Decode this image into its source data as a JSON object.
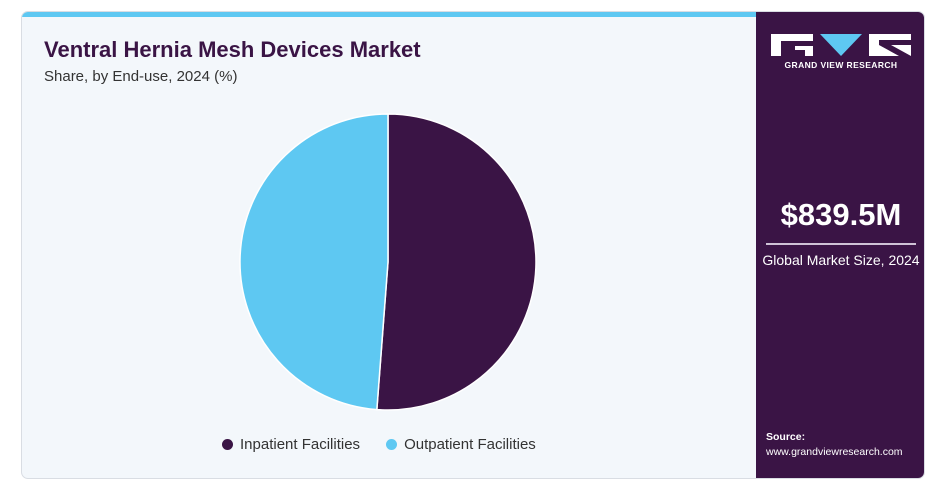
{
  "header": {
    "title": "Ventral Hernia Mesh Devices Market",
    "subtitle": "Share, by End-use, 2024 (%)"
  },
  "chart_data": {
    "type": "pie",
    "title": "Ventral Hernia Mesh Devices Market",
    "subtitle": "Share, by End-use, 2024 (%)",
    "slices": [
      {
        "name": "Inpatient Facilities",
        "value": 51.2,
        "color": "#3a1445"
      },
      {
        "name": "Outpatient Facilities",
        "value": 48.8,
        "color": "#5ec8f2"
      }
    ],
    "start_angle_deg": 0,
    "legend_position": "bottom"
  },
  "legend": {
    "items": [
      {
        "label": "Inpatient Facilities",
        "color": "#3a1445"
      },
      {
        "label": "Outpatient Facilities",
        "color": "#5ec8f2"
      }
    ]
  },
  "sidebar": {
    "brand": "GRAND VIEW RESEARCH",
    "market_value": "$839.5M",
    "market_label": "Global Market Size, 2024",
    "source_label": "Source:",
    "source_url": "www.grandviewresearch.com"
  },
  "colors": {
    "accent_dark": "#3a1445",
    "accent_light": "#5ec8f2",
    "background": "#f3f7fb"
  }
}
